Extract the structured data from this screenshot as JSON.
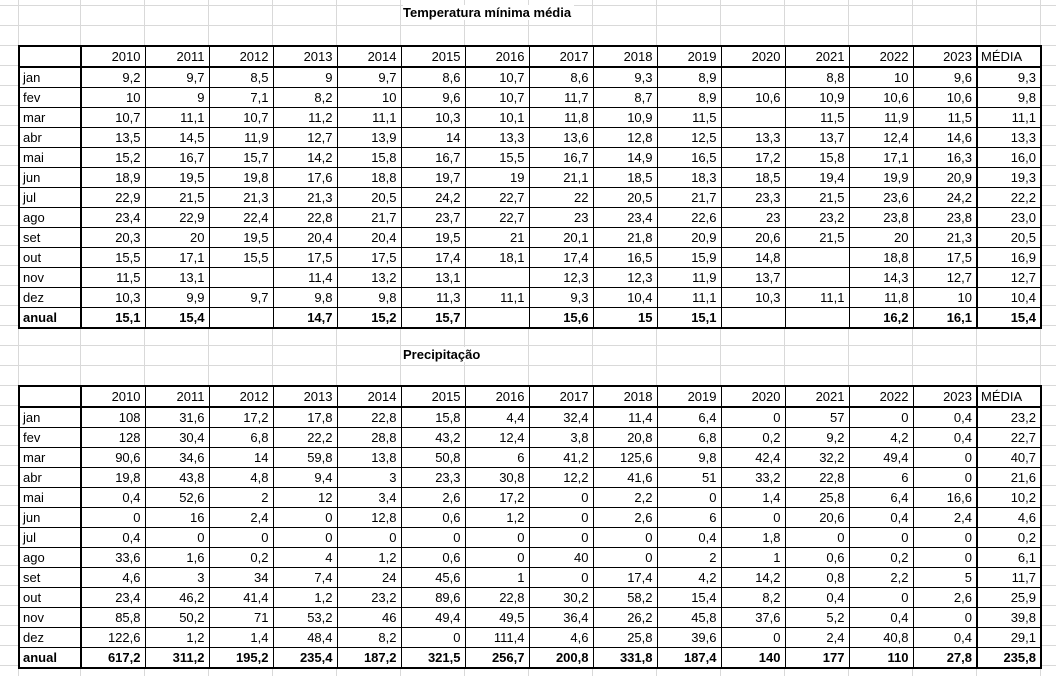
{
  "sheet": {
    "gridline_color": "#d9d9d9",
    "border_color": "#000000",
    "background": "#ffffff"
  },
  "columns": [
    "2010",
    "2011",
    "2012",
    "2013",
    "2014",
    "2015",
    "2016",
    "2017",
    "2018",
    "2019",
    "2020",
    "2021",
    "2022",
    "2023",
    "MÉDIA"
  ],
  "table1": {
    "title": "Temperatura mínima média",
    "rows": [
      {
        "label": "jan",
        "bold": false,
        "values": [
          "9,2",
          "9,7",
          "8,5",
          "9",
          "9,7",
          "8,6",
          "10,7",
          "8,6",
          "9,3",
          "8,9",
          "",
          "8,8",
          "10",
          "9,6",
          "9,3"
        ]
      },
      {
        "label": "fev",
        "bold": false,
        "values": [
          "10",
          "9",
          "7,1",
          "8,2",
          "10",
          "9,6",
          "10,7",
          "11,7",
          "8,7",
          "8,9",
          "10,6",
          "10,9",
          "10,6",
          "10,6",
          "9,8"
        ]
      },
      {
        "label": "mar",
        "bold": false,
        "values": [
          "10,7",
          "11,1",
          "10,7",
          "11,2",
          "11,1",
          "10,3",
          "10,1",
          "11,8",
          "10,9",
          "11,5",
          "",
          "11,5",
          "11,9",
          "11,5",
          "11,1"
        ]
      },
      {
        "label": "abr",
        "bold": false,
        "values": [
          "13,5",
          "14,5",
          "11,9",
          "12,7",
          "13,9",
          "14",
          "13,3",
          "13,6",
          "12,8",
          "12,5",
          "13,3",
          "13,7",
          "12,4",
          "14,6",
          "13,3"
        ]
      },
      {
        "label": "mai",
        "bold": false,
        "values": [
          "15,2",
          "16,7",
          "15,7",
          "14,2",
          "15,8",
          "16,7",
          "15,5",
          "16,7",
          "14,9",
          "16,5",
          "17,2",
          "15,8",
          "17,1",
          "16,3",
          "16,0"
        ]
      },
      {
        "label": "jun",
        "bold": false,
        "values": [
          "18,9",
          "19,5",
          "19,8",
          "17,6",
          "18,8",
          "19,7",
          "19",
          "21,1",
          "18,5",
          "18,3",
          "18,5",
          "19,4",
          "19,9",
          "20,9",
          "19,3"
        ]
      },
      {
        "label": "jul",
        "bold": false,
        "values": [
          "22,9",
          "21,5",
          "21,3",
          "21,3",
          "20,5",
          "24,2",
          "22,7",
          "22",
          "20,5",
          "21,7",
          "23,3",
          "21,5",
          "23,6",
          "24,2",
          "22,2"
        ]
      },
      {
        "label": "ago",
        "bold": false,
        "values": [
          "23,4",
          "22,9",
          "22,4",
          "22,8",
          "21,7",
          "23,7",
          "22,7",
          "23",
          "23,4",
          "22,6",
          "23",
          "23,2",
          "23,8",
          "23,8",
          "23,0"
        ]
      },
      {
        "label": "set",
        "bold": false,
        "values": [
          "20,3",
          "20",
          "19,5",
          "20,4",
          "20,4",
          "19,5",
          "21",
          "20,1",
          "21,8",
          "20,9",
          "20,6",
          "21,5",
          "20",
          "21,3",
          "20,5"
        ]
      },
      {
        "label": "out",
        "bold": false,
        "values": [
          "15,5",
          "17,1",
          "15,5",
          "17,5",
          "17,5",
          "17,4",
          "18,1",
          "17,4",
          "16,5",
          "15,9",
          "14,8",
          "",
          "18,8",
          "17,5",
          "16,9"
        ]
      },
      {
        "label": "nov",
        "bold": false,
        "values": [
          "11,5",
          "13,1",
          "",
          "11,4",
          "13,2",
          "13,1",
          "",
          "12,3",
          "12,3",
          "11,9",
          "13,7",
          "",
          "14,3",
          "12,7",
          "12,7"
        ]
      },
      {
        "label": "dez",
        "bold": false,
        "values": [
          "10,3",
          "9,9",
          "9,7",
          "9,8",
          "9,8",
          "11,3",
          "11,1",
          "9,3",
          "10,4",
          "11,1",
          "10,3",
          "11,1",
          "11,8",
          "10",
          "10,4"
        ]
      },
      {
        "label": "anual",
        "bold": true,
        "values": [
          "15,1",
          "15,4",
          "",
          "14,7",
          "15,2",
          "15,7",
          "",
          "15,6",
          "15",
          "15,1",
          "",
          "",
          "16,2",
          "16,1",
          "15,4"
        ]
      }
    ]
  },
  "table2": {
    "title": "Precipitação",
    "rows": [
      {
        "label": "jan",
        "bold": false,
        "values": [
          "108",
          "31,6",
          "17,2",
          "17,8",
          "22,8",
          "15,8",
          "4,4",
          "32,4",
          "11,4",
          "6,4",
          "0",
          "57",
          "0",
          "0,4",
          "23,2"
        ]
      },
      {
        "label": "fev",
        "bold": false,
        "values": [
          "128",
          "30,4",
          "6,8",
          "22,2",
          "28,8",
          "43,2",
          "12,4",
          "3,8",
          "20,8",
          "6,8",
          "0,2",
          "9,2",
          "4,2",
          "0,4",
          "22,7"
        ]
      },
      {
        "label": "mar",
        "bold": false,
        "values": [
          "90,6",
          "34,6",
          "14",
          "59,8",
          "13,8",
          "50,8",
          "6",
          "41,2",
          "125,6",
          "9,8",
          "42,4",
          "32,2",
          "49,4",
          "0",
          "40,7"
        ]
      },
      {
        "label": "abr",
        "bold": false,
        "values": [
          "19,8",
          "43,8",
          "4,8",
          "9,4",
          "3",
          "23,3",
          "30,8",
          "12,2",
          "41,6",
          "51",
          "33,2",
          "22,8",
          "6",
          "0",
          "21,6"
        ]
      },
      {
        "label": "mai",
        "bold": false,
        "values": [
          "0,4",
          "52,6",
          "2",
          "12",
          "3,4",
          "2,6",
          "17,2",
          "0",
          "2,2",
          "0",
          "1,4",
          "25,8",
          "6,4",
          "16,6",
          "10,2"
        ]
      },
      {
        "label": "jun",
        "bold": false,
        "values": [
          "0",
          "16",
          "2,4",
          "0",
          "12,8",
          "0,6",
          "1,2",
          "0",
          "2,6",
          "6",
          "0",
          "20,6",
          "0,4",
          "2,4",
          "4,6"
        ]
      },
      {
        "label": "jul",
        "bold": false,
        "values": [
          "0,4",
          "0",
          "0",
          "0",
          "0",
          "0",
          "0",
          "0",
          "0",
          "0,4",
          "1,8",
          "0",
          "0",
          "0",
          "0,2"
        ]
      },
      {
        "label": "ago",
        "bold": false,
        "values": [
          "33,6",
          "1,6",
          "0,2",
          "4",
          "1,2",
          "0,6",
          "0",
          "40",
          "0",
          "2",
          "1",
          "0,6",
          "0,2",
          "0",
          "6,1"
        ]
      },
      {
        "label": "set",
        "bold": false,
        "values": [
          "4,6",
          "3",
          "34",
          "7,4",
          "24",
          "45,6",
          "1",
          "0",
          "17,4",
          "4,2",
          "14,2",
          "0,8",
          "2,2",
          "5",
          "11,7"
        ]
      },
      {
        "label": "out",
        "bold": false,
        "values": [
          "23,4",
          "46,2",
          "41,4",
          "1,2",
          "23,2",
          "89,6",
          "22,8",
          "30,2",
          "58,2",
          "15,4",
          "8,2",
          "0,4",
          "0",
          "2,6",
          "25,9"
        ]
      },
      {
        "label": "nov",
        "bold": false,
        "values": [
          "85,8",
          "50,2",
          "71",
          "53,2",
          "46",
          "49,4",
          "49,5",
          "36,4",
          "26,2",
          "45,8",
          "37,6",
          "5,2",
          "0,4",
          "0",
          "39,8"
        ]
      },
      {
        "label": "dez",
        "bold": false,
        "values": [
          "122,6",
          "1,2",
          "1,4",
          "48,4",
          "8,2",
          "0",
          "111,4",
          "4,6",
          "25,8",
          "39,6",
          "0",
          "2,4",
          "40,8",
          "0,4",
          "29,1"
        ]
      },
      {
        "label": "anual",
        "bold": true,
        "values": [
          "617,2",
          "311,2",
          "195,2",
          "235,4",
          "187,2",
          "321,5",
          "256,7",
          "200,8",
          "331,8",
          "187,4",
          "140",
          "177",
          "110",
          "27,8",
          "235,8"
        ]
      }
    ]
  }
}
